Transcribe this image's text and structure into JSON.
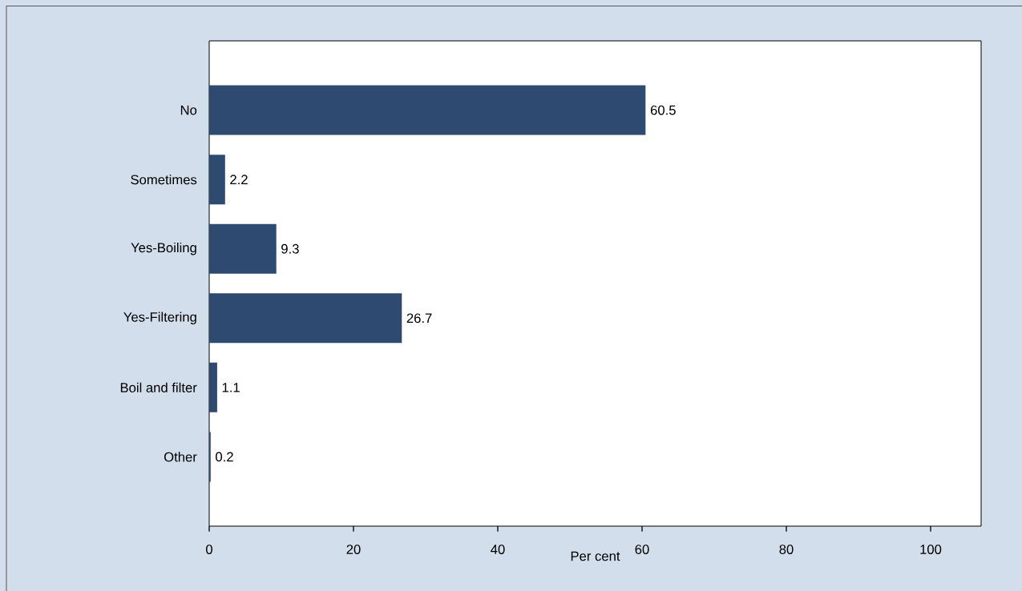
{
  "chart_data": {
    "type": "bar",
    "orientation": "horizontal",
    "xlabel": "Per cent",
    "categories": [
      "No",
      "Sometimes",
      "Yes-Boiling",
      "Yes-Filtering",
      "Boil and filter",
      "Other"
    ],
    "values": [
      60.5,
      2.2,
      9.3,
      26.7,
      1.1,
      0.2
    ],
    "color": "#2e4a70",
    "data_labels": true,
    "xlim": [
      0,
      107
    ],
    "xticks": [
      0,
      20,
      40,
      60,
      80,
      100
    ]
  }
}
